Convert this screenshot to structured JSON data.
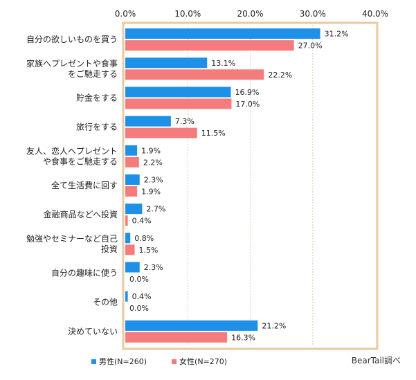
{
  "chart_data": {
    "type": "bar",
    "orientation": "horizontal",
    "categories": [
      [
        "自分の欲しいものを買う"
      ],
      [
        "家族へプレゼントや食事",
        "をご馳走する"
      ],
      [
        "貯金をする"
      ],
      [
        "旅行をする"
      ],
      [
        "友人、恋人へプレゼント",
        "や食事をご馳走する"
      ],
      [
        "全て生活費に回す"
      ],
      [
        "金融商品などへ投資"
      ],
      [
        "勉強やセミナーなど自己",
        "投資"
      ],
      [
        "自分の趣味に使う"
      ],
      [
        "その他"
      ],
      [
        "決めていない"
      ]
    ],
    "series": [
      {
        "name": "男性(N=260)",
        "color": "#1e90e8",
        "values": [
          31.2,
          13.1,
          16.9,
          7.3,
          1.9,
          2.3,
          2.7,
          0.8,
          2.3,
          0.4,
          21.2
        ],
        "labels": [
          "31.2%",
          "13.1%",
          "16.9%",
          "7.3%",
          "1.9%",
          "2.3%",
          "2.7%",
          "0.8%",
          "2.3%",
          "0.4%",
          "21.2%"
        ]
      },
      {
        "name": "女性(N=270)",
        "color": "#f47c7c",
        "values": [
          27.0,
          22.2,
          17.0,
          11.5,
          2.2,
          1.9,
          0.4,
          1.5,
          0.0,
          0.0,
          16.3
        ],
        "labels": [
          "27.0%",
          "22.2%",
          "17.0%",
          "11.5%",
          "2.2%",
          "1.9%",
          "0.4%",
          "1.5%",
          "0.0%",
          "0.0%",
          "16.3%"
        ]
      }
    ],
    "xlim": [
      0,
      40
    ],
    "xticks": [
      0,
      10,
      20,
      30,
      40
    ],
    "xtick_labels": [
      "0.0%",
      "10.0%",
      "20.0%",
      "30.0%",
      "40.0%"
    ],
    "grid": true,
    "legend_position": "bottom-left",
    "frame_color": "#e8c9a0"
  },
  "source_note": "BearTail調べ"
}
